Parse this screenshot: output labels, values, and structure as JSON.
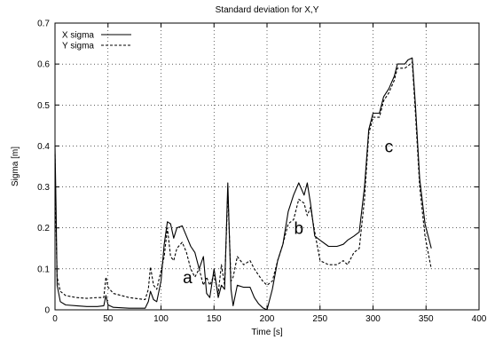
{
  "chart_data": {
    "type": "line",
    "title": "Standard deviation for X,Y",
    "xlabel": "Time [s]",
    "ylabel": "Sigma [m]",
    "xlim": [
      0,
      400
    ],
    "ylim": [
      0,
      0.7
    ],
    "x_ticks": [
      "0",
      "50",
      "100",
      "150",
      "200",
      "250",
      "300",
      "350",
      "400"
    ],
    "y_ticks": [
      "0",
      "0.1",
      "0.2",
      "0.3",
      "0.4",
      "0.5",
      "0.6",
      "0.7"
    ],
    "grid": true,
    "legend_position": "top-left",
    "series": [
      {
        "name": "X sigma",
        "style": "solid",
        "points": [
          [
            0,
            0.4
          ],
          [
            1,
            0.25
          ],
          [
            2,
            0.06
          ],
          [
            5,
            0.02
          ],
          [
            10,
            0.012
          ],
          [
            20,
            0.01
          ],
          [
            30,
            0.008
          ],
          [
            40,
            0.008
          ],
          [
            46,
            0.01
          ],
          [
            48,
            0.035
          ],
          [
            50,
            0.012
          ],
          [
            55,
            0.006
          ],
          [
            70,
            0.004
          ],
          [
            85,
            0.004
          ],
          [
            88,
            0.02
          ],
          [
            90,
            0.045
          ],
          [
            93,
            0.025
          ],
          [
            96,
            0.02
          ],
          [
            100,
            0.07
          ],
          [
            103,
            0.16
          ],
          [
            106,
            0.215
          ],
          [
            109,
            0.21
          ],
          [
            112,
            0.175
          ],
          [
            115,
            0.2
          ],
          [
            120,
            0.205
          ],
          [
            124,
            0.18
          ],
          [
            128,
            0.155
          ],
          [
            132,
            0.14
          ],
          [
            136,
            0.1
          ],
          [
            140,
            0.13
          ],
          [
            143,
            0.04
          ],
          [
            146,
            0.03
          ],
          [
            150,
            0.1
          ],
          [
            154,
            0.03
          ],
          [
            157,
            0.06
          ],
          [
            160,
            0.05
          ],
          [
            163,
            0.31
          ],
          [
            166,
            0.05
          ],
          [
            168,
            0.01
          ],
          [
            172,
            0.06
          ],
          [
            178,
            0.055
          ],
          [
            184,
            0.055
          ],
          [
            188,
            0.03
          ],
          [
            192,
            0.015
          ],
          [
            196,
            0.005
          ],
          [
            200,
            0.0
          ],
          [
            205,
            0.05
          ],
          [
            210,
            0.12
          ],
          [
            215,
            0.16
          ],
          [
            220,
            0.24
          ],
          [
            225,
            0.28
          ],
          [
            230,
            0.31
          ],
          [
            235,
            0.28
          ],
          [
            238,
            0.31
          ],
          [
            241,
            0.26
          ],
          [
            245,
            0.18
          ],
          [
            250,
            0.17
          ],
          [
            258,
            0.155
          ],
          [
            266,
            0.155
          ],
          [
            272,
            0.16
          ],
          [
            276,
            0.17
          ],
          [
            282,
            0.18
          ],
          [
            287,
            0.19
          ],
          [
            292,
            0.3
          ],
          [
            296,
            0.44
          ],
          [
            300,
            0.48
          ],
          [
            306,
            0.48
          ],
          [
            310,
            0.52
          ],
          [
            315,
            0.54
          ],
          [
            320,
            0.57
          ],
          [
            323,
            0.6
          ],
          [
            330,
            0.6
          ],
          [
            333,
            0.61
          ],
          [
            337,
            0.615
          ],
          [
            340,
            0.5
          ],
          [
            344,
            0.32
          ],
          [
            349,
            0.21
          ],
          [
            355,
            0.15
          ]
        ]
      },
      {
        "name": "Y sigma",
        "style": "dashed",
        "points": [
          [
            0,
            0.38
          ],
          [
            1,
            0.2
          ],
          [
            2,
            0.08
          ],
          [
            5,
            0.045
          ],
          [
            10,
            0.035
          ],
          [
            20,
            0.03
          ],
          [
            30,
            0.028
          ],
          [
            40,
            0.03
          ],
          [
            46,
            0.03
          ],
          [
            48,
            0.08
          ],
          [
            50,
            0.055
          ],
          [
            55,
            0.04
          ],
          [
            70,
            0.03
          ],
          [
            85,
            0.025
          ],
          [
            88,
            0.05
          ],
          [
            90,
            0.105
          ],
          [
            93,
            0.06
          ],
          [
            96,
            0.05
          ],
          [
            100,
            0.095
          ],
          [
            103,
            0.13
          ],
          [
            106,
            0.2
          ],
          [
            109,
            0.13
          ],
          [
            112,
            0.12
          ],
          [
            115,
            0.15
          ],
          [
            120,
            0.165
          ],
          [
            124,
            0.14
          ],
          [
            128,
            0.1
          ],
          [
            132,
            0.08
          ],
          [
            136,
            0.1
          ],
          [
            140,
            0.06
          ],
          [
            143,
            0.08
          ],
          [
            146,
            0.06
          ],
          [
            150,
            0.085
          ],
          [
            154,
            0.04
          ],
          [
            157,
            0.11
          ],
          [
            160,
            0.06
          ],
          [
            163,
            0.29
          ],
          [
            166,
            0.07
          ],
          [
            168,
            0.08
          ],
          [
            172,
            0.13
          ],
          [
            178,
            0.11
          ],
          [
            184,
            0.12
          ],
          [
            188,
            0.1
          ],
          [
            192,
            0.085
          ],
          [
            196,
            0.07
          ],
          [
            200,
            0.06
          ],
          [
            205,
            0.07
          ],
          [
            210,
            0.12
          ],
          [
            215,
            0.16
          ],
          [
            220,
            0.21
          ],
          [
            225,
            0.22
          ],
          [
            230,
            0.27
          ],
          [
            235,
            0.26
          ],
          [
            238,
            0.23
          ],
          [
            241,
            0.25
          ],
          [
            245,
            0.19
          ],
          [
            250,
            0.12
          ],
          [
            258,
            0.11
          ],
          [
            266,
            0.11
          ],
          [
            272,
            0.12
          ],
          [
            276,
            0.11
          ],
          [
            282,
            0.14
          ],
          [
            287,
            0.15
          ],
          [
            292,
            0.27
          ],
          [
            296,
            0.43
          ],
          [
            300,
            0.47
          ],
          [
            306,
            0.47
          ],
          [
            310,
            0.51
          ],
          [
            315,
            0.53
          ],
          [
            320,
            0.56
          ],
          [
            323,
            0.59
          ],
          [
            330,
            0.59
          ],
          [
            333,
            0.595
          ],
          [
            337,
            0.605
          ],
          [
            340,
            0.48
          ],
          [
            344,
            0.3
          ],
          [
            349,
            0.18
          ],
          [
            355,
            0.1
          ]
        ]
      }
    ],
    "annotations": [
      {
        "text": "a",
        "x": 125,
        "y": 0.065
      },
      {
        "text": "b",
        "x": 230,
        "y": 0.185
      },
      {
        "text": "c",
        "x": 315,
        "y": 0.385
      }
    ]
  }
}
